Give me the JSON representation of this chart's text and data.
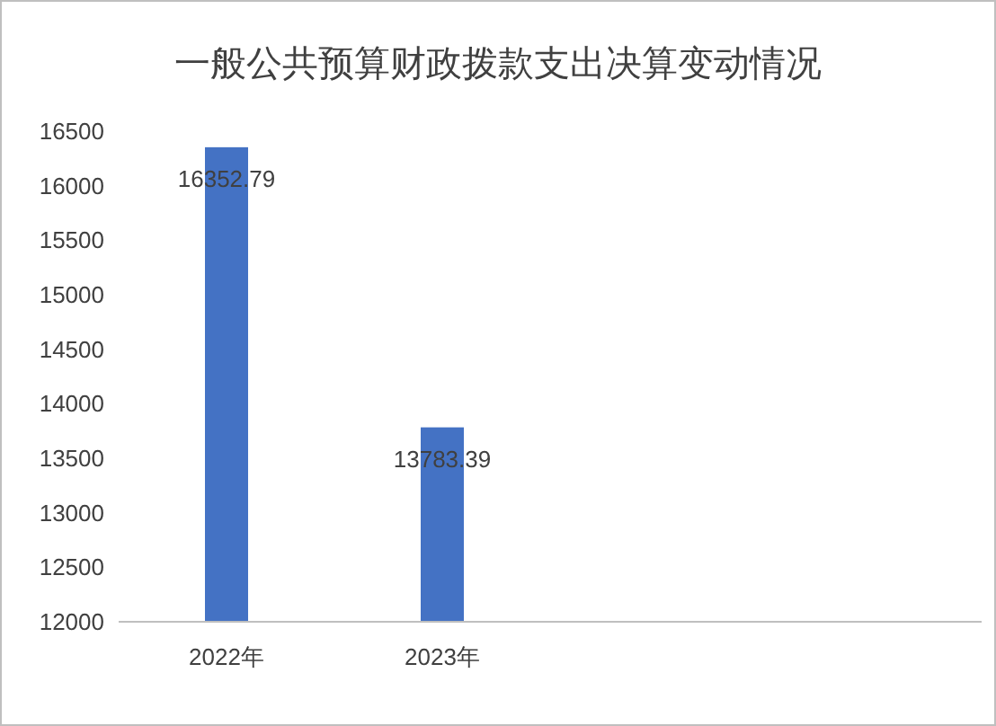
{
  "chart_data": {
    "type": "bar",
    "title": "一般公共预算财政拨款支出决算变动情况",
    "categories": [
      "2022年",
      "2023年",
      null,
      null
    ],
    "series": [
      {
        "color": "#4472c4",
        "values": [
          16352.79,
          13783.39,
          null,
          null
        ]
      }
    ],
    "ylim": [
      12000,
      16500
    ],
    "yticks": [
      12000,
      12500,
      13000,
      13500,
      14000,
      14500,
      15000,
      15500,
      16000,
      16500
    ],
    "grid": false,
    "data_labels": true
  }
}
